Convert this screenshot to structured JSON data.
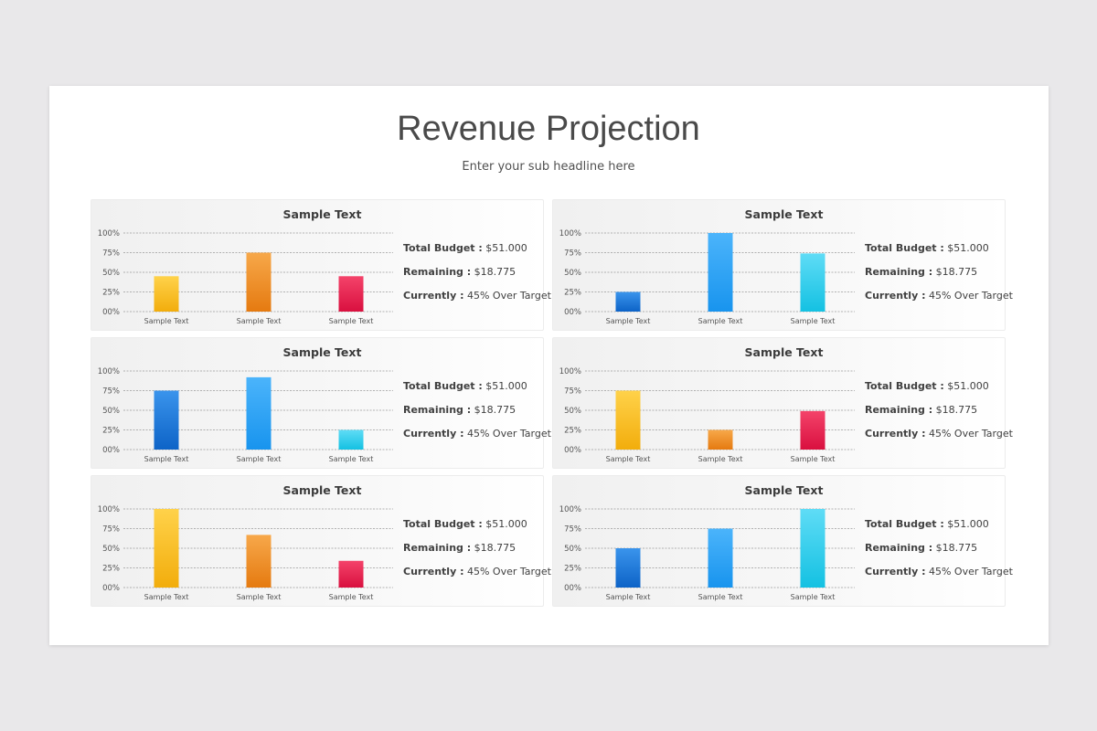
{
  "title": "Revenue Projection",
  "subtitle": "Enter your sub headline here",
  "colors": {
    "yellow": [
      "#ffd24a",
      "#f2ad0c"
    ],
    "orange": [
      "#f7a84a",
      "#e57a10"
    ],
    "red": [
      "#f4436a",
      "#d9103f"
    ],
    "blue_dark": [
      "#3a94ec",
      "#0d63c7"
    ],
    "blue_mid": [
      "#4bb4fb",
      "#1894ee"
    ],
    "cyan": [
      "#5fdcf6",
      "#14c1e2"
    ]
  },
  "chart_data": [
    {
      "type": "bar",
      "title": "Sample Text",
      "categories": [
        "Sample Text",
        "Sample Text",
        "Sample Text"
      ],
      "values": [
        45,
        75,
        45
      ],
      "colors": [
        "yellow",
        "orange",
        "red"
      ],
      "ylim": [
        0,
        100
      ],
      "ticks": [
        "00%",
        "25%",
        "50%",
        "75%",
        "100%"
      ],
      "grid": true,
      "info": [
        {
          "label": "Total Budget :",
          "value": "$51.000"
        },
        {
          "label": "Remaining :",
          "value": "$18.775"
        },
        {
          "label": "Currently :",
          "value": "45% Over Target"
        }
      ]
    },
    {
      "type": "bar",
      "title": "Sample Text",
      "categories": [
        "Sample Text",
        "Sample Text",
        "Sample Text"
      ],
      "values": [
        25,
        100,
        74
      ],
      "colors": [
        "blue_dark",
        "blue_mid",
        "cyan"
      ],
      "ylim": [
        0,
        100
      ],
      "ticks": [
        "00%",
        "25%",
        "50%",
        "75%",
        "100%"
      ],
      "grid": true,
      "info": [
        {
          "label": "Total Budget :",
          "value": "$51.000"
        },
        {
          "label": "Remaining :",
          "value": "$18.775"
        },
        {
          "label": "Currently :",
          "value": "45% Over Target"
        }
      ]
    },
    {
      "type": "bar",
      "title": "Sample Text",
      "categories": [
        "Sample Text",
        "Sample Text",
        "Sample Text"
      ],
      "values": [
        75,
        92,
        25
      ],
      "colors": [
        "blue_dark",
        "blue_mid",
        "cyan"
      ],
      "ylim": [
        0,
        100
      ],
      "ticks": [
        "00%",
        "25%",
        "50%",
        "75%",
        "100%"
      ],
      "grid": true,
      "info": [
        {
          "label": "Total Budget :",
          "value": "$51.000"
        },
        {
          "label": "Remaining :",
          "value": "$18.775"
        },
        {
          "label": "Currently :",
          "value": "45% Over Target"
        }
      ]
    },
    {
      "type": "bar",
      "title": "Sample Text",
      "categories": [
        "Sample Text",
        "Sample Text",
        "Sample Text"
      ],
      "values": [
        75,
        25,
        49
      ],
      "colors": [
        "yellow",
        "orange",
        "red"
      ],
      "ylim": [
        0,
        100
      ],
      "ticks": [
        "00%",
        "25%",
        "50%",
        "75%",
        "100%"
      ],
      "grid": true,
      "info": [
        {
          "label": "Total Budget :",
          "value": "$51.000"
        },
        {
          "label": "Remaining :",
          "value": "$18.775"
        },
        {
          "label": "Currently :",
          "value": "45% Over Target"
        }
      ]
    },
    {
      "type": "bar",
      "title": "Sample Text",
      "categories": [
        "Sample Text",
        "Sample Text",
        "Sample Text"
      ],
      "values": [
        100,
        67,
        34
      ],
      "colors": [
        "yellow",
        "orange",
        "red"
      ],
      "ylim": [
        0,
        100
      ],
      "ticks": [
        "00%",
        "25%",
        "50%",
        "75%",
        "100%"
      ],
      "grid": true,
      "info": [
        {
          "label": "Total Budget :",
          "value": "$51.000"
        },
        {
          "label": "Remaining :",
          "value": "$18.775"
        },
        {
          "label": "Currently :",
          "value": "45% Over Target"
        }
      ]
    },
    {
      "type": "bar",
      "title": "Sample Text",
      "categories": [
        "Sample Text",
        "Sample Text",
        "Sample Text"
      ],
      "values": [
        50,
        75,
        100
      ],
      "colors": [
        "blue_dark",
        "blue_mid",
        "cyan"
      ],
      "ylim": [
        0,
        100
      ],
      "ticks": [
        "00%",
        "25%",
        "50%",
        "75%",
        "100%"
      ],
      "grid": true,
      "info": [
        {
          "label": "Total Budget :",
          "value": "$51.000"
        },
        {
          "label": "Remaining :",
          "value": "$18.775"
        },
        {
          "label": "Currently :",
          "value": "45% Over Target"
        }
      ]
    }
  ]
}
